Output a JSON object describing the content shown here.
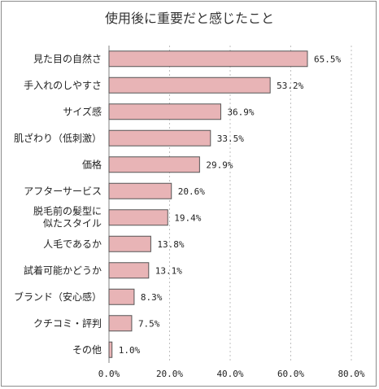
{
  "chart_data": {
    "type": "bar",
    "orientation": "horizontal",
    "title": "使用後に重要だと感じたこと",
    "categories": [
      "見た目の自然さ",
      "手入れのしやすさ",
      "サイズ感",
      "肌ざわり（低刺激）",
      "価格",
      "アフターサービス",
      "脱毛前の髪型に\n似たスタイル",
      "人毛であるか",
      "試着可能かどうか",
      "ブランド（安心感）",
      "クチコミ・評判",
      "その他"
    ],
    "values": [
      65.5,
      53.2,
      36.9,
      33.5,
      29.9,
      20.6,
      19.4,
      13.8,
      13.1,
      8.3,
      7.5,
      1.0
    ],
    "value_labels": [
      "65.5%",
      "53.2%",
      "36.9%",
      "33.5%",
      "29.9%",
      "20.6%",
      "19.4%",
      "13.8%",
      "13.1%",
      "8.3%",
      "7.5%",
      "1.0%"
    ],
    "xlim": [
      0,
      80
    ],
    "xticks": [
      "0.0%",
      "20.0%",
      "40.0%",
      "60.0%",
      "80.0%"
    ],
    "grid": true,
    "colors": {
      "bar_fill": "#e8b4b6",
      "bar_stroke": "#555555",
      "grid": "#bfbfbf"
    }
  }
}
